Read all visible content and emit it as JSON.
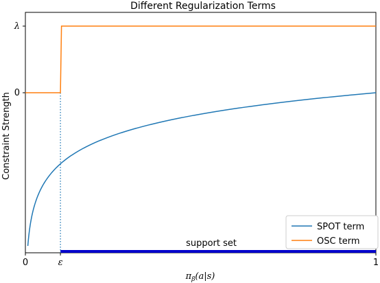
{
  "chart_data": {
    "type": "line",
    "title": "Different Regularization Terms",
    "xlabel": "πβ(a|s)",
    "ylabel": "Constraint Strength",
    "xlim": [
      0,
      1
    ],
    "x_ticks": [
      {
        "value": 0,
        "label": "0"
      },
      {
        "value": 0.1,
        "label": "ε"
      },
      {
        "value": 1,
        "label": "1"
      }
    ],
    "y_ticks": [
      {
        "value": 0,
        "label": "0"
      },
      {
        "value": 1,
        "label": "λ"
      }
    ],
    "epsilon": 0.1,
    "lambda": 1,
    "series": [
      {
        "name": "SPOT term",
        "color": "#1f77b4",
        "function": "log",
        "x_range": [
          0.007,
          1
        ],
        "description": "y = log(x), rising from about -2.3 toward 0 at x = 1"
      },
      {
        "name": "OSC term",
        "color": "#ff7f0e",
        "function": "step",
        "points": [
          [
            0,
            0
          ],
          [
            0.1,
            0
          ],
          [
            0.103,
            1
          ],
          [
            1,
            1
          ]
        ]
      }
    ],
    "annotations": [
      {
        "text": "support set",
        "x_start": 0.1,
        "x_end": 1,
        "color": "#0000cc"
      }
    ],
    "vline": {
      "x": 0.1,
      "style": "dotted",
      "color": "#1f77b4"
    },
    "legend": "lower right",
    "grid": false
  }
}
